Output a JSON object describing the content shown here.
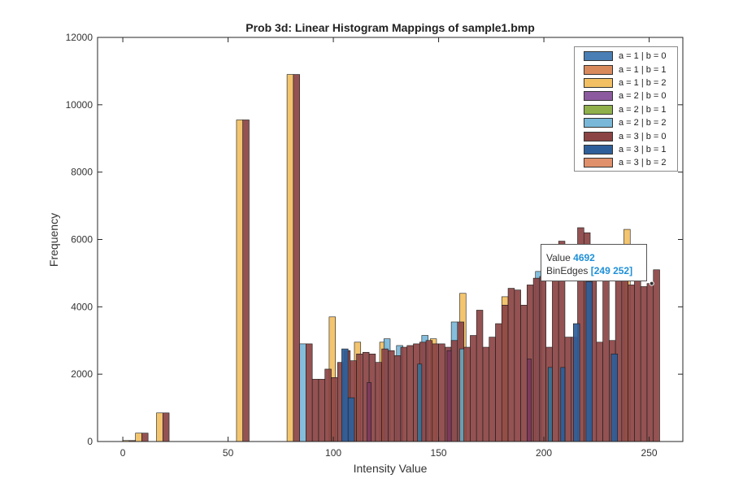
{
  "chart_data": {
    "type": "bar",
    "title": "Prob 3d: Linear Histogram Mappings of sample1.bmp",
    "xlabel": "Intensity Value",
    "ylabel": "Frequency",
    "xlim": [
      -12,
      266
    ],
    "ylim": [
      0,
      12000
    ],
    "xticks": [
      0,
      50,
      100,
      150,
      200,
      250
    ],
    "yticks": [
      0,
      2000,
      4000,
      6000,
      8000,
      10000,
      12000
    ],
    "grid": false,
    "legend_position": "top-right",
    "series": [
      {
        "name": "a = 1 | b = 0",
        "color": "#4a7fb5"
      },
      {
        "name": "a = 1 | b = 1",
        "color": "#d98a5c"
      },
      {
        "name": "a = 1 | b = 2",
        "color": "#f2c063",
        "bars": [
          [
            0,
            30
          ],
          [
            6,
            250
          ],
          [
            16,
            850
          ],
          [
            54,
            9550
          ],
          [
            78,
            10900
          ],
          [
            98,
            3700
          ],
          [
            110,
            2950
          ],
          [
            122,
            2950
          ],
          [
            146,
            3050
          ],
          [
            160,
            4400
          ],
          [
            180,
            4300
          ],
          [
            238,
            6300
          ]
        ]
      },
      {
        "name": "a = 2 | b = 0",
        "color": "#8c5a9e"
      },
      {
        "name": "a = 2 | b = 1",
        "color": "#8fb04a"
      },
      {
        "name": "a = 2 | b = 2",
        "color": "#79b8d9",
        "bars": [
          [
            84,
            2900
          ],
          [
            124,
            3050
          ],
          [
            130,
            2850
          ],
          [
            142,
            3150
          ],
          [
            156,
            3550
          ],
          [
            196,
            5050
          ]
        ]
      },
      {
        "name": "a = 3 | b = 0",
        "color": "#8b4343",
        "bars": [
          [
            3,
            30
          ],
          [
            9,
            250
          ],
          [
            19,
            850
          ],
          [
            57,
            9550
          ],
          [
            81,
            10900
          ],
          [
            87,
            2900
          ],
          [
            90,
            1850
          ],
          [
            93,
            1850
          ],
          [
            96,
            2150
          ],
          [
            99,
            1900
          ],
          [
            102,
            2350
          ],
          [
            105,
            2700
          ],
          [
            108,
            2400
          ],
          [
            111,
            2600
          ],
          [
            114,
            2650
          ],
          [
            117,
            2600
          ],
          [
            120,
            2350
          ],
          [
            123,
            2750
          ],
          [
            126,
            2700
          ],
          [
            129,
            2550
          ],
          [
            132,
            2800
          ],
          [
            135,
            2850
          ],
          [
            138,
            2900
          ],
          [
            141,
            2950
          ],
          [
            144,
            3000
          ],
          [
            147,
            2900
          ],
          [
            150,
            2900
          ],
          [
            153,
            2800
          ],
          [
            156,
            3000
          ],
          [
            159,
            3550
          ],
          [
            162,
            2800
          ],
          [
            165,
            3150
          ],
          [
            168,
            3900
          ],
          [
            171,
            2800
          ],
          [
            174,
            3100
          ],
          [
            177,
            3500
          ],
          [
            180,
            4050
          ],
          [
            183,
            4550
          ],
          [
            186,
            4500
          ],
          [
            189,
            4050
          ],
          [
            192,
            4650
          ],
          [
            195,
            4850
          ],
          [
            198,
            4900
          ],
          [
            201,
            2800
          ],
          [
            204,
            5650
          ],
          [
            207,
            5950
          ],
          [
            210,
            3100
          ],
          [
            213,
            3100
          ],
          [
            216,
            6350
          ],
          [
            219,
            6200
          ],
          [
            222,
            5000
          ],
          [
            225,
            2950
          ],
          [
            228,
            5350
          ],
          [
            231,
            3000
          ],
          [
            234,
            5100
          ],
          [
            237,
            5500
          ],
          [
            240,
            4650
          ],
          [
            243,
            4850
          ],
          [
            246,
            4600
          ],
          [
            249,
            4692
          ],
          [
            252,
            5100
          ]
        ]
      },
      {
        "name": "a = 3 | b = 1",
        "color": "#2e5f9a",
        "bars": [
          [
            104,
            2750
          ],
          [
            107,
            1300
          ],
          [
            214,
            3500
          ],
          [
            220,
            4750
          ],
          [
            232,
            2600
          ]
        ]
      },
      {
        "name": "a = 3 | b = 2",
        "color": "#e0906a"
      }
    ],
    "highlight_bars": [
      {
        "x": 116,
        "value": 1750,
        "color": "#7d3a5c"
      },
      {
        "x": 140,
        "value": 2300,
        "color": "#3e6f8f"
      },
      {
        "x": 154,
        "value": 2700,
        "color": "#7d3a5c"
      },
      {
        "x": 160,
        "value": 2750,
        "color": "#6f9bb0"
      },
      {
        "x": 192,
        "value": 2450,
        "color": "#7d3a5c"
      },
      {
        "x": 202,
        "value": 2200,
        "color": "#3e6f8f"
      },
      {
        "x": 208,
        "value": 2200,
        "color": "#2e5f9a"
      }
    ],
    "datatip": {
      "value_label": "Value",
      "value": "4692",
      "edges_label": "BinEdges",
      "edges": "[249 252]",
      "at_x": 252,
      "at_y": 4692
    }
  }
}
